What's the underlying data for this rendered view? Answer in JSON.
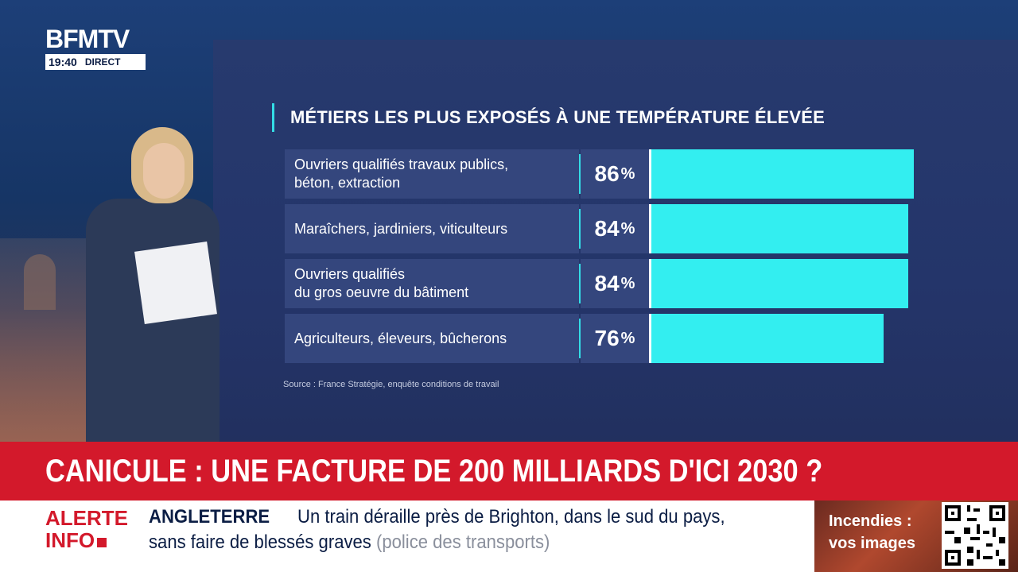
{
  "channel": {
    "logo": "BFMTV",
    "time": "19:40",
    "live_label": "DIRECT"
  },
  "chart_data": {
    "type": "bar",
    "orientation": "horizontal",
    "title": "MÉTIERS LES PLUS EXPOSÉS À UNE TEMPÉRATURE ÉLEVÉE",
    "categories": [
      [
        "Ouvriers qualifiés travaux publics,",
        "béton, extraction"
      ],
      [
        "Maraîchers, jardiniers, viticulteurs"
      ],
      [
        "Ouvriers qualifiés",
        "du gros oeuvre du bâtiment"
      ],
      [
        "Agriculteurs, éleveurs, bûcherons"
      ]
    ],
    "values": [
      86,
      84,
      84,
      76
    ],
    "value_unit": "%",
    "bar_color": "#33eef0",
    "source": "Source : France Stratégie, enquête conditions de travail"
  },
  "headline": "CANICULE : UNE FACTURE DE 200 MILLIARDS D'ICI 2030 ?",
  "ticker": {
    "alert_line1": "ALERTE",
    "alert_line2": "INFO",
    "tag": "ANGLETERRE",
    "line1": "Un train déraille près de Brighton, dans le sud du pays,",
    "line2": "sans faire de blessés graves",
    "line2_source": "(police des transports)"
  },
  "promo": {
    "line1": "Incendies :",
    "line2": "vos images"
  },
  "colors": {
    "headline_red": "#d3192b",
    "accent_cyan": "#33dde6",
    "panel_navy": "#24356a"
  }
}
